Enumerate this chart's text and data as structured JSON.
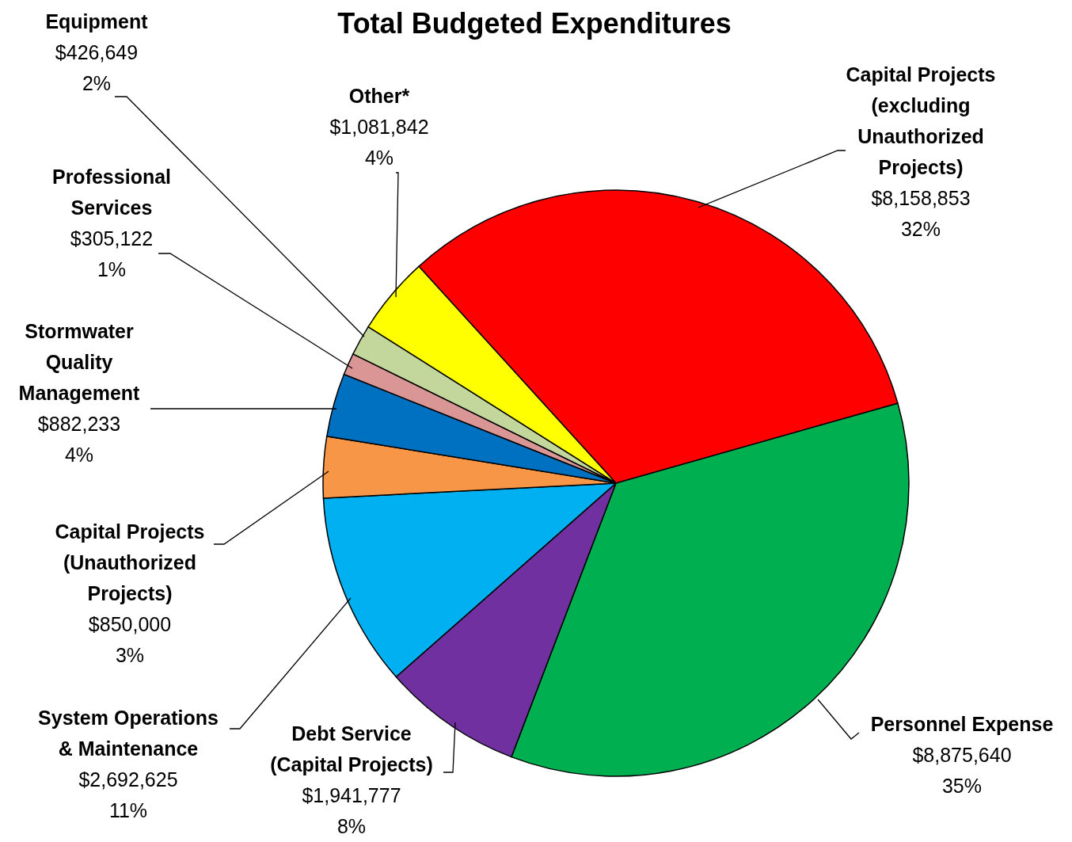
{
  "chart_data": {
    "type": "pie",
    "title": "Total Budgeted Expenditures",
    "categories": [
      "Capital Projects (excluding Unauthorized Projects)",
      "Personnel Expense",
      "Debt Service (Capital Projects)",
      "System Operations & Maintenance",
      "Capital Projects (Unauthorized Projects)",
      "Stormwater Quality Management",
      "Professional Services",
      "Equipment",
      "Other*"
    ],
    "values": [
      8158853,
      8875640,
      1941777,
      2692625,
      850000,
      882233,
      305122,
      426649,
      1081842
    ],
    "value_labels": [
      "$8,158,853 32%",
      "$8,875,640 35%",
      "$1,941,777 8%",
      "$2,692,625 11%",
      "$850,000 3%",
      "$882,233 4%",
      "$305,122 1%",
      "$426,649 2%",
      "$1,081,842 4%"
    ],
    "colors": [
      "#ff0000",
      "#00b050",
      "#7030a0",
      "#00b0f0",
      "#f79646",
      "#0070c0",
      "#d99694",
      "#c3d69b",
      "#ffff00"
    ]
  }
}
